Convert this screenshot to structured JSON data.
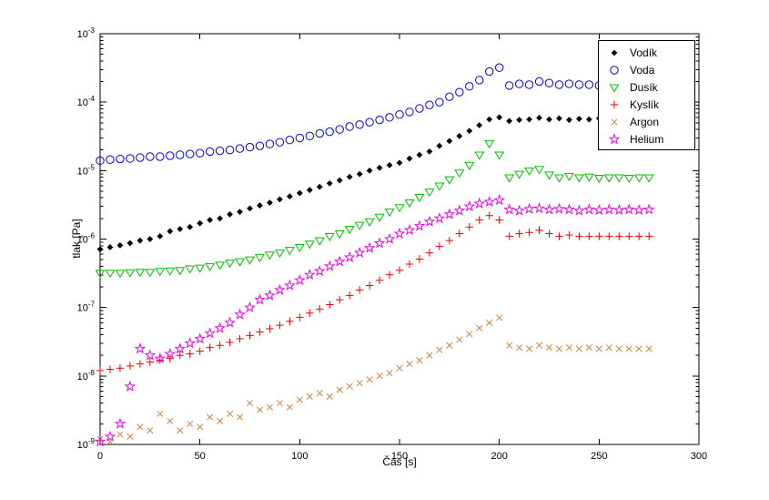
{
  "figure": {
    "background": "#ffffff",
    "plot_box_color": "#000000"
  },
  "chart_data": {
    "type": "scatter",
    "title": "",
    "xlabel": "Čas [s]",
    "ylabel": "tlak [Pa]",
    "x_range": [
      0,
      300
    ],
    "y_scale": "log",
    "y_range_exponents": [
      -9,
      -3
    ],
    "x_ticks": [
      0,
      50,
      100,
      150,
      200,
      250,
      300
    ],
    "y_tick_exponents": [
      -9,
      -8,
      -7,
      -6,
      -5,
      -4,
      -3
    ],
    "grid": false,
    "legend_position": "top-right",
    "x": [
      0,
      5,
      10,
      15,
      20,
      25,
      30,
      35,
      40,
      45,
      50,
      55,
      60,
      65,
      70,
      75,
      80,
      85,
      90,
      95,
      100,
      105,
      110,
      115,
      120,
      125,
      130,
      135,
      140,
      145,
      150,
      155,
      160,
      165,
      170,
      175,
      180,
      185,
      190,
      195,
      200,
      205,
      210,
      215,
      220,
      225,
      230,
      235,
      240,
      245,
      250,
      255,
      260,
      265,
      270,
      275
    ],
    "series": [
      {
        "name": "Vodík",
        "marker": "diamond",
        "color": "#000000",
        "values": [
          7.1e-07,
          7.6e-07,
          8.1e-07,
          8.7e-07,
          9.5e-07,
          1e-06,
          1.1e-06,
          1.3e-06,
          1.4e-06,
          1.5e-06,
          1.7e-06,
          1.9e-06,
          2e-06,
          2.3e-06,
          2.5e-06,
          2.8e-06,
          3.1e-06,
          3.4e-06,
          3.8e-06,
          4.2e-06,
          4.7e-06,
          5.2e-06,
          5.8e-06,
          6.5e-06,
          7.2e-06,
          8.1e-06,
          8.9e-06,
          1e-05,
          1.1e-05,
          1.2e-05,
          1.3e-05,
          1.5e-05,
          1.7e-05,
          1.9e-05,
          2.3e-05,
          2.7e-05,
          3.2e-05,
          3.8e-05,
          4.6e-05,
          5.6e-05,
          6e-05,
          5.3e-05,
          5.5e-05,
          5.6e-05,
          5.9e-05,
          5.6e-05,
          5.8e-05,
          5.5e-05,
          5.7e-05,
          5.6e-05,
          5.8e-05,
          5.6e-05,
          5.7e-05,
          5.5e-05,
          5.6e-05,
          5.6e-05
        ]
      },
      {
        "name": "Voda",
        "marker": "circle",
        "color": "#0000e0",
        "values": [
          1.4e-05,
          1.45e-05,
          1.48e-05,
          1.5e-05,
          1.55e-05,
          1.6e-05,
          1.6e-05,
          1.65e-05,
          1.7e-05,
          1.75e-05,
          1.8e-05,
          1.9e-05,
          1.95e-05,
          2e-05,
          2.1e-05,
          2.2e-05,
          2.3e-05,
          2.45e-05,
          2.6e-05,
          2.8e-05,
          3e-05,
          3.2e-05,
          3.5e-05,
          3.7e-05,
          4e-05,
          4.4e-05,
          4.7e-05,
          5.1e-05,
          5.5e-05,
          6e-05,
          6.6e-05,
          7.2e-05,
          8.1e-05,
          9.1e-05,
          0.0001,
          0.00012,
          0.00014,
          0.00017,
          0.00021,
          0.00028,
          0.00032,
          0.000175,
          0.000185,
          0.00018,
          0.0002,
          0.00019,
          0.00018,
          0.000185,
          0.00018,
          0.00018,
          0.000175,
          0.00018,
          0.000175,
          0.00017,
          0.000175,
          0.00017
        ]
      },
      {
        "name": "Dusík",
        "marker": "triangle-down",
        "color": "#00c000",
        "values": [
          3.2e-07,
          3.2e-07,
          3.2e-07,
          3.25e-07,
          3.3e-07,
          3.3e-07,
          3.4e-07,
          3.45e-07,
          3.5e-07,
          3.7e-07,
          3.8e-07,
          4e-07,
          4.2e-07,
          4.5e-07,
          4.7e-07,
          5e-07,
          5.4e-07,
          5.9e-07,
          6.3e-07,
          6.9e-07,
          7.6e-07,
          8.5e-07,
          9.5e-07,
          1.1e-06,
          1.2e-06,
          1.4e-06,
          1.6e-06,
          1.8e-06,
          2.1e-06,
          2.5e-06,
          2.9e-06,
          3.4e-06,
          4.1e-06,
          4.9e-06,
          6e-06,
          7.4e-06,
          9.3e-06,
          1.2e-05,
          1.7e-05,
          2.5e-05,
          1.7e-05,
          7.9e-06,
          8.9e-06,
          1e-05,
          1.05e-05,
          8.7e-06,
          7.9e-06,
          8.3e-06,
          7.9e-06,
          8.1e-06,
          7.8e-06,
          7.9e-06,
          7.9e-06,
          7.8e-06,
          7.9e-06,
          7.9e-06
        ]
      },
      {
        "name": "Kyslík",
        "marker": "plus",
        "color": "#f00000",
        "values": [
          1.2e-08,
          1.25e-08,
          1.3e-08,
          1.4e-08,
          1.5e-08,
          1.6e-08,
          1.7e-08,
          1.8e-08,
          2e-08,
          2.1e-08,
          2.3e-08,
          2.6e-08,
          2.8e-08,
          3.1e-08,
          3.5e-08,
          3.9e-08,
          4.4e-08,
          4.9e-08,
          5.5e-08,
          6.3e-08,
          7.2e-08,
          8.3e-08,
          9.5e-08,
          1.1e-07,
          1.3e-07,
          1.5e-07,
          1.8e-07,
          2.1e-07,
          2.5e-07,
          3e-07,
          3.5e-07,
          4.3e-07,
          5.1e-07,
          6.3e-07,
          7.8e-07,
          9.5e-07,
          1.2e-06,
          1.5e-06,
          1.9e-06,
          2.2e-06,
          1.9e-06,
          1.1e-06,
          1.2e-06,
          1.25e-06,
          1.35e-06,
          1.2e-06,
          1.1e-06,
          1.15e-06,
          1.1e-06,
          1.1e-06,
          1.1e-06,
          1.1e-06,
          1.1e-06,
          1.1e-06,
          1.1e-06,
          1.1e-06
        ]
      },
      {
        "name": "Argon",
        "marker": "x",
        "color": "#cd853f",
        "values": [
          1.2e-09,
          1.1e-09,
          1.4e-09,
          1.3e-09,
          1.8e-09,
          1.6e-09,
          2.8e-09,
          2.2e-09,
          1.6e-09,
          2e-09,
          1.8e-09,
          2.5e-09,
          2.2e-09,
          2.8e-09,
          2.5e-09,
          4e-09,
          3.2e-09,
          3.5e-09,
          4e-09,
          3.5e-09,
          4.5e-09,
          5e-09,
          5.6e-09,
          5e-09,
          6.3e-09,
          7.1e-09,
          7.9e-09,
          8.9e-09,
          1e-08,
          1.1e-08,
          1.3e-08,
          1.5e-08,
          1.7e-08,
          2e-08,
          2.4e-08,
          2.8e-08,
          3.4e-08,
          4.1e-08,
          5e-08,
          6e-08,
          7.1e-08,
          2.8e-08,
          2.6e-08,
          2.5e-08,
          2.8e-08,
          2.6e-08,
          2.5e-08,
          2.6e-08,
          2.5e-08,
          2.6e-08,
          2.5e-08,
          2.6e-08,
          2.5e-08,
          2.5e-08,
          2.5e-08,
          2.5e-08
        ]
      },
      {
        "name": "Helium",
        "marker": "pentagram",
        "color": "#ee00ee",
        "values": [
          1.1e-09,
          1.3e-09,
          2e-09,
          7e-09,
          2.5e-08,
          2e-08,
          1.8e-08,
          2.1e-08,
          2.5e-08,
          3e-08,
          3.5e-08,
          4.2e-08,
          5e-08,
          6e-08,
          7.9e-08,
          1e-07,
          1.3e-07,
          1.5e-07,
          1.8e-07,
          2.1e-07,
          2.5e-07,
          3e-07,
          3.4e-07,
          4e-07,
          4.7e-07,
          5.4e-07,
          6.3e-07,
          7.4e-07,
          8.7e-07,
          1e-06,
          1.2e-06,
          1.35e-06,
          1.55e-06,
          1.8e-06,
          2e-06,
          2.3e-06,
          2.6e-06,
          3e-06,
          3.3e-06,
          3.5e-06,
          3.7e-06,
          2.7e-06,
          2.6e-06,
          2.75e-06,
          2.8e-06,
          2.7e-06,
          2.75e-06,
          2.7e-06,
          2.6e-06,
          2.7e-06,
          2.65e-06,
          2.7e-06,
          2.65e-06,
          2.7e-06,
          2.65e-06,
          2.7e-06
        ]
      }
    ]
  }
}
